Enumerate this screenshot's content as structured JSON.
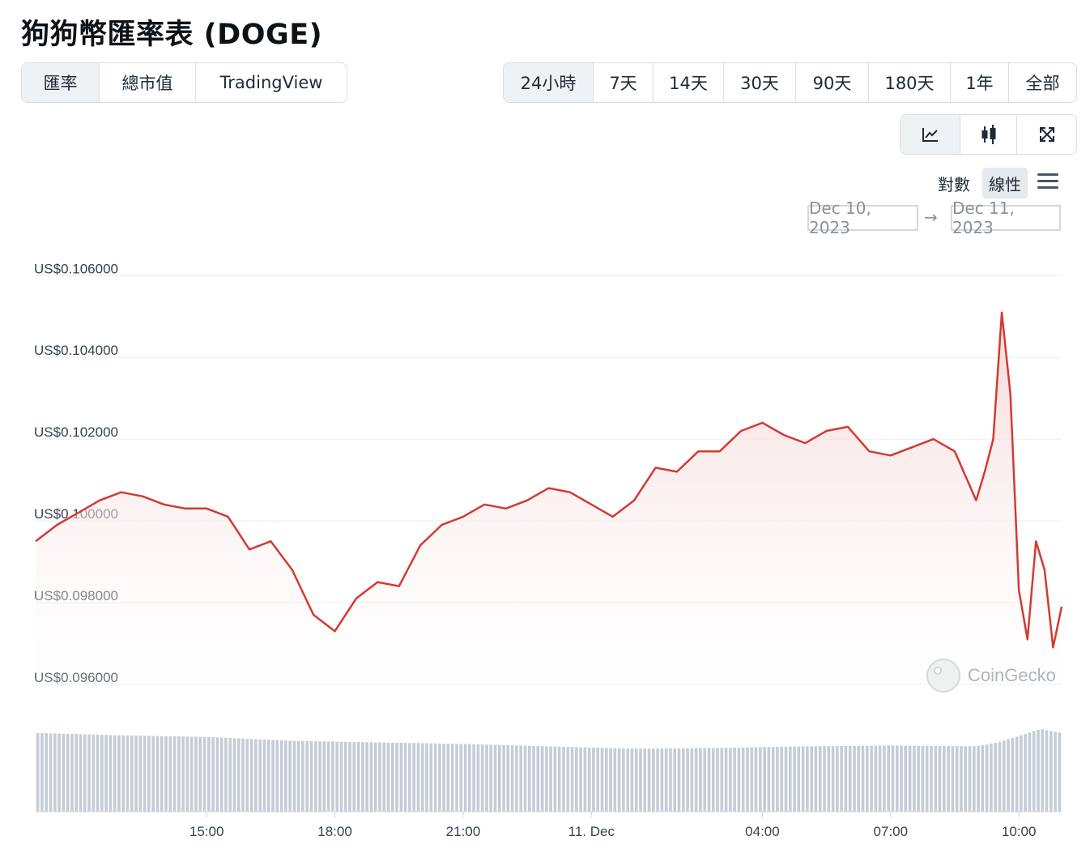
{
  "title": "狗狗幣匯率表 (DOGE)",
  "view_tabs": [
    {
      "label": "匯率",
      "active": true
    },
    {
      "label": "總市值",
      "active": false
    },
    {
      "label": "TradingView",
      "active": false
    }
  ],
  "range_tabs": [
    {
      "label": "24小時",
      "active": true
    },
    {
      "label": "7天",
      "active": false
    },
    {
      "label": "14天",
      "active": false
    },
    {
      "label": "30天",
      "active": false
    },
    {
      "label": "90天",
      "active": false
    },
    {
      "label": "180天",
      "active": false
    },
    {
      "label": "1年",
      "active": false
    },
    {
      "label": "全部",
      "active": false
    }
  ],
  "chart_tools": [
    {
      "icon": "line-chart-icon",
      "active": true
    },
    {
      "icon": "candlestick-icon",
      "active": false
    },
    {
      "icon": "fullscreen-icon",
      "active": false
    }
  ],
  "scale": {
    "log_label": "對數",
    "linear_label": "線性",
    "selected": "linear",
    "menu_icon": "hamburger-menu-icon"
  },
  "date_range": {
    "from": "Dec 10, 2023",
    "to": "Dec 11, 2023",
    "arrow_icon": "arrow-right-icon"
  },
  "watermark": "CoinGecko",
  "colors": {
    "line": "#d13b34",
    "area_top": "#f4d4d2",
    "volume": "#c5ccd6",
    "grid": "#e9ecef"
  },
  "chart_data": {
    "type": "area",
    "title": "",
    "xlabel": "",
    "ylabel": "",
    "ylim": [
      0.0955,
      0.1066
    ],
    "y_ticks": [
      "US$0.106000",
      "US$0.104000",
      "US$0.102000",
      "US$0.100000",
      "US$0.098000",
      "US$0.096000"
    ],
    "y_tick_values": [
      0.106,
      0.104,
      0.102,
      0.1,
      0.098,
      0.096
    ],
    "x_ticks": [
      "15:00",
      "18:00",
      "21:00",
      "11. Dec",
      "04:00",
      "07:00",
      "10:00"
    ],
    "x_tick_hours": [
      3.0,
      6.0,
      9.0,
      12.0,
      16.0,
      19.0,
      22.0
    ],
    "x_range_hours": [
      -1.0,
      23.0
    ],
    "grid": true,
    "series": [
      {
        "kind": "price",
        "x_hours": [
          -1.0,
          -0.5,
          0.0,
          0.5,
          1.0,
          1.5,
          2.0,
          2.5,
          3.0,
          3.5,
          4.0,
          4.5,
          5.0,
          5.5,
          6.0,
          6.5,
          7.0,
          7.5,
          8.0,
          8.5,
          9.0,
          9.5,
          10.0,
          10.5,
          11.0,
          11.5,
          12.0,
          12.5,
          13.0,
          13.5,
          14.0,
          14.5,
          15.0,
          15.5,
          16.0,
          16.5,
          17.0,
          17.5,
          18.0,
          18.5,
          19.0,
          19.5,
          20.0,
          20.5,
          21.0,
          21.2,
          21.4,
          21.6,
          21.8,
          22.0,
          22.2,
          22.4,
          22.6,
          22.8,
          23.0
        ],
        "values": [
          0.0995,
          0.0999,
          0.1002,
          0.1005,
          0.1007,
          0.1006,
          0.1004,
          0.1003,
          0.1003,
          0.1001,
          0.0993,
          0.0995,
          0.0988,
          0.0977,
          0.0973,
          0.0981,
          0.0985,
          0.0984,
          0.0994,
          0.0999,
          0.1001,
          0.1004,
          0.1003,
          0.1005,
          0.1008,
          0.1007,
          0.1004,
          0.1001,
          0.1005,
          0.1013,
          0.1012,
          0.1017,
          0.1017,
          0.1022,
          0.1024,
          0.1021,
          0.1019,
          0.1022,
          0.1023,
          0.1017,
          0.1016,
          0.1018,
          0.102,
          0.1017,
          0.1005,
          0.1012,
          0.102,
          0.1051,
          0.1031,
          0.0983,
          0.0971,
          0.0995,
          0.0988,
          0.0969,
          0.0979
        ]
      },
      {
        "kind": "volume",
        "x_hours": [
          -1.0,
          1.0,
          3.0,
          5.0,
          7.0,
          9.0,
          11.0,
          13.0,
          15.0,
          17.0,
          19.0,
          21.0,
          21.5,
          22.0,
          22.5,
          23.0
        ],
        "values": [
          100,
          97,
          95,
          90,
          88,
          86,
          83,
          80,
          81,
          83,
          84,
          83,
          88,
          96,
          105,
          100
        ]
      }
    ]
  }
}
